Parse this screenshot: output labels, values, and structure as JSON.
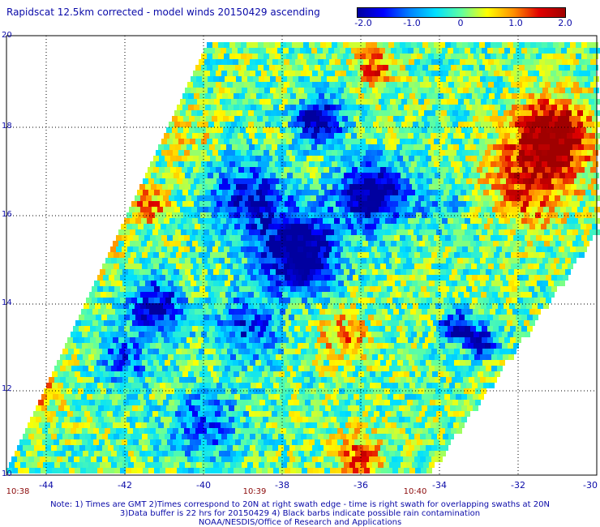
{
  "title": "Rapidscat 12.5km corrected - model winds 20150429 ascending",
  "colorbar": {
    "ticks": [
      "-2.0",
      "-1.0",
      "0",
      "1.0",
      "2.0"
    ],
    "min": -2.0,
    "max": 2.0,
    "colors": [
      "#0000a0",
      "#0000ff",
      "#0080ff",
      "#00e0ff",
      "#60ffa0",
      "#ffff00",
      "#ff9000",
      "#e00000",
      "#a00000"
    ]
  },
  "y_ticks": [
    "20",
    "18",
    "16",
    "14",
    "12",
    "10"
  ],
  "x_ticks": [
    "-44",
    "-42",
    "-40",
    "-38",
    "-36",
    "-34",
    "-32",
    "-30"
  ],
  "time_ticks": [
    "10:38",
    "10:39",
    "10:40"
  ],
  "notes": [
    "Note: 1) Times are GMT 2)Times correspond to 20N at right swath edge - time is right swath for overlapping swaths at 20N",
    "3)Data buffer is 22 hrs for 20150429 4) Black barbs indicate possible rain contamination",
    "NOAA/NESDIS/Office of Research and Applications"
  ]
}
